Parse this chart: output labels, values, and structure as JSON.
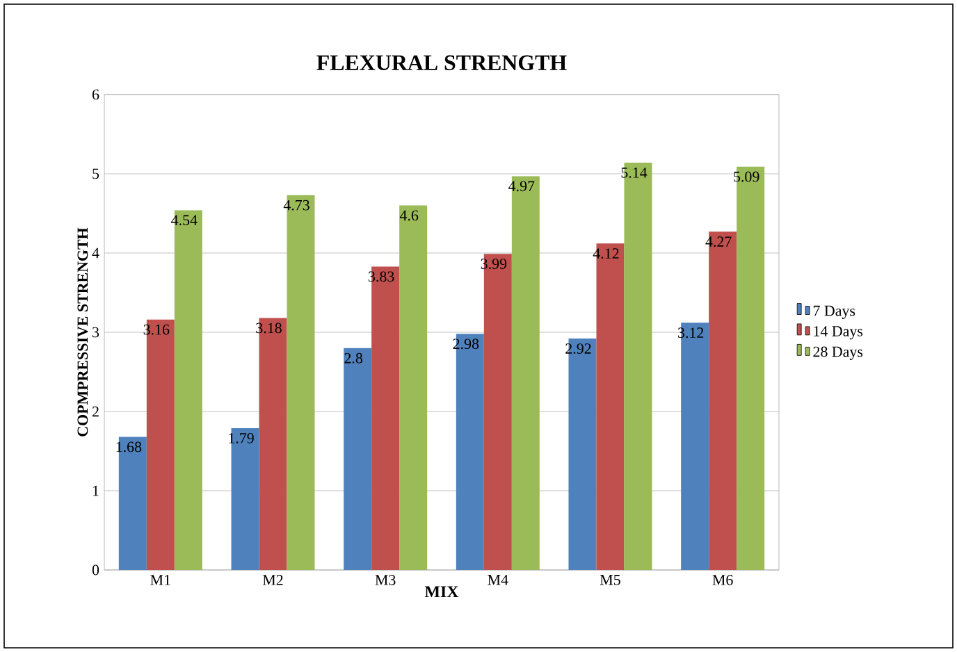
{
  "chart_data": {
    "type": "bar",
    "title": "FLEXURAL STRENGTH",
    "xlabel": "MIX",
    "ylabel": "COPMPRESSIVE STRENGTH",
    "categories": [
      "M1",
      "M2",
      "M3",
      "M4",
      "M5",
      "M6"
    ],
    "series": [
      {
        "name": "7 Days",
        "color": "#4f81bd",
        "values": [
          1.68,
          1.79,
          2.8,
          2.98,
          2.92,
          3.12
        ]
      },
      {
        "name": "14 Days",
        "color": "#c0504d",
        "values": [
          3.16,
          3.18,
          3.83,
          3.99,
          4.12,
          4.27
        ]
      },
      {
        "name": "28 Days",
        "color": "#9bbb59",
        "values": [
          4.54,
          4.73,
          4.6,
          4.97,
          5.14,
          5.09
        ]
      }
    ],
    "ylim": [
      0,
      6
    ],
    "yticks": [
      0,
      1,
      2,
      3,
      4,
      5,
      6
    ],
    "grid": "y",
    "legend": "right",
    "data_labels": true
  }
}
